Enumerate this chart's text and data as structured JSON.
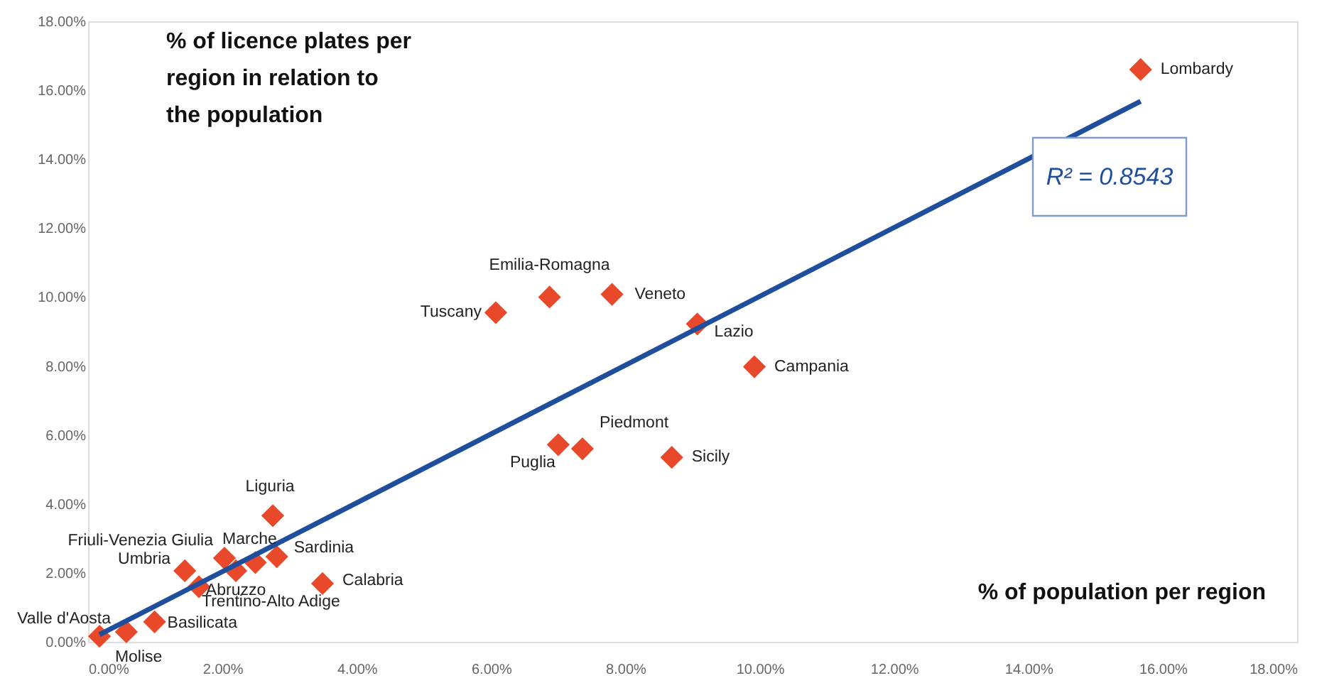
{
  "chart_data": {
    "type": "scatter",
    "title": "% of licence plates per region in relation to the population",
    "xlabel": "% of population per region",
    "xlim": [
      0,
      18
    ],
    "ylim": [
      0,
      18
    ],
    "xticks": [
      {
        "value": 0,
        "label": "0.00%"
      },
      {
        "value": 2,
        "label": "2.00%"
      },
      {
        "value": 4,
        "label": "4.00%"
      },
      {
        "value": 6,
        "label": "6.00%"
      },
      {
        "value": 8,
        "label": "8.00%"
      },
      {
        "value": 10,
        "label": "10.00%"
      },
      {
        "value": 12,
        "label": "12.00%"
      },
      {
        "value": 14,
        "label": "14.00%"
      },
      {
        "value": 16,
        "label": "16.00%"
      },
      {
        "value": 18,
        "label": "18.00%"
      }
    ],
    "yticks": [
      {
        "value": 0,
        "label": "0.00%"
      },
      {
        "value": 2,
        "label": "2.00%"
      },
      {
        "value": 4,
        "label": "4.00%"
      },
      {
        "value": 6,
        "label": "6.00%"
      },
      {
        "value": 8,
        "label": "8.00%"
      },
      {
        "value": 10,
        "label": "10.00%"
      },
      {
        "value": 12,
        "label": "12.00%"
      },
      {
        "value": 14,
        "label": "14.00%"
      },
      {
        "value": 16,
        "label": "16.00%"
      },
      {
        "value": 18,
        "label": "18.00%"
      }
    ],
    "grid": false,
    "marker": "diamond",
    "series": [
      {
        "color": "#e8492a",
        "x": [
          15.67,
          9.07,
          9.92,
          7.8,
          6.87,
          6.07,
          7.36,
          7.0,
          8.69,
          2.75,
          2.49,
          2.81,
          3.49,
          2.2,
          1.65,
          2.03,
          1.44,
          0.99,
          0.57,
          0.17
        ],
        "values": [
          16.6,
          9.22,
          7.98,
          10.08,
          10.0,
          9.55,
          5.6,
          5.72,
          5.35,
          3.66,
          2.3,
          2.47,
          1.69,
          2.06,
          1.6,
          2.43,
          2.06,
          0.58,
          0.29,
          0.16
        ]
      },
      {
        "type": "line",
        "color": "#1f4e9c",
        "marker": "none",
        "line_style": "solid",
        "x": [
          0.17,
          15.67
        ],
        "values": [
          0.21,
          15.68
        ]
      }
    ],
    "annotations": [
      {
        "text": "Lombardy",
        "x": 15.67,
        "y": 16.6
      },
      {
        "text": "Lazio",
        "x": 9.07,
        "y": 9.22
      },
      {
        "text": "Campania",
        "x": 9.92,
        "y": 7.98
      },
      {
        "text": "Veneto",
        "x": 7.8,
        "y": 10.08
      },
      {
        "text": "Emilia-Romagna",
        "x": 6.87,
        "y": 10.0
      },
      {
        "text": "Tuscany",
        "x": 6.07,
        "y": 9.55
      },
      {
        "text": "Piedmont",
        "x": 7.36,
        "y": 5.6
      },
      {
        "text": "Puglia",
        "x": 7.0,
        "y": 5.72
      },
      {
        "text": "Sicily",
        "x": 8.69,
        "y": 5.35
      },
      {
        "text": "Liguria",
        "x": 2.75,
        "y": 3.66
      },
      {
        "text": "Marche",
        "x": 2.49,
        "y": 2.3
      },
      {
        "text": "Sardinia",
        "x": 2.81,
        "y": 2.47
      },
      {
        "text": "Calabria",
        "x": 3.49,
        "y": 1.69
      },
      {
        "text": "Abruzzo",
        "x": 2.2,
        "y": 2.06
      },
      {
        "text": "Trentino-Alto Adige",
        "x": 1.65,
        "y": 1.6
      },
      {
        "text": "Friuli-Venezia Giulia",
        "x": 2.03,
        "y": 2.43
      },
      {
        "text": "Umbria",
        "x": 1.44,
        "y": 2.06
      },
      {
        "text": "Basilicata",
        "x": 0.99,
        "y": 0.58
      },
      {
        "text": "Molise",
        "x": 0.57,
        "y": 0.29
      },
      {
        "text": "Valle d'Aosta",
        "x": 0.17,
        "y": 0.16
      },
      "R² = 0.8543"
    ]
  }
}
